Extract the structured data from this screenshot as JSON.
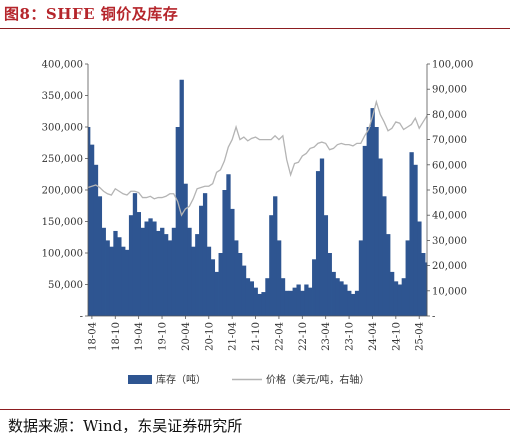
{
  "title": "图8：SHFE 铜价及库存",
  "source": "数据来源：Wind，东吴证券研究所",
  "chart_data": {
    "type": "area",
    "x_tick_labels": [
      "18-04",
      "18-10",
      "19-04",
      "19-10",
      "20-04",
      "20-10",
      "21-04",
      "21-10",
      "22-04",
      "22-10",
      "23-04",
      "23-10",
      "24-04",
      "24-10",
      "25-04"
    ],
    "left_axis": {
      "ylim": [
        0,
        400000
      ],
      "ticks": [
        "-",
        "50,000",
        "100,000",
        "150,000",
        "200,000",
        "250,000",
        "300,000",
        "350,000",
        "400,000"
      ]
    },
    "right_axis": {
      "ylim": [
        0,
        100000
      ],
      "ticks": [
        "-",
        "10,000",
        "20,000",
        "30,000",
        "40,000",
        "50,000",
        "60,000",
        "70,000",
        "80,000",
        "90,000",
        "100,000"
      ]
    },
    "series": [
      {
        "name": "库存（吨）",
        "axis": "left",
        "color": "#2e5591",
        "x": [
          "2018-03",
          "2018-04",
          "2018-05",
          "2018-06",
          "2018-07",
          "2018-08",
          "2018-09",
          "2018-10",
          "2018-11",
          "2018-12",
          "2019-01",
          "2019-02",
          "2019-03",
          "2019-04",
          "2019-05",
          "2019-06",
          "2019-07",
          "2019-08",
          "2019-09",
          "2019-10",
          "2019-11",
          "2019-12",
          "2020-01",
          "2020-02",
          "2020-03",
          "2020-04",
          "2020-05",
          "2020-06",
          "2020-07",
          "2020-08",
          "2020-09",
          "2020-10",
          "2020-11",
          "2020-12",
          "2021-01",
          "2021-02",
          "2021-03",
          "2021-04",
          "2021-05",
          "2021-06",
          "2021-07",
          "2021-08",
          "2021-09",
          "2021-10",
          "2021-11",
          "2021-12",
          "2022-01",
          "2022-02",
          "2022-03",
          "2022-04",
          "2022-05",
          "2022-06",
          "2022-07",
          "2022-08",
          "2022-09",
          "2022-10",
          "2022-11",
          "2022-12",
          "2023-01",
          "2023-02",
          "2023-03",
          "2023-04",
          "2023-05",
          "2023-06",
          "2023-07",
          "2023-08",
          "2023-09",
          "2023-10",
          "2023-11",
          "2023-12",
          "2024-01",
          "2024-02",
          "2024-03",
          "2024-04",
          "2024-05",
          "2024-06",
          "2024-07",
          "2024-08",
          "2024-09",
          "2024-10",
          "2024-11",
          "2024-12",
          "2025-01",
          "2025-02",
          "2025-03",
          "2025-04",
          "2025-05",
          "2025-06"
        ],
        "values": [
          300000,
          272000,
          240000,
          190000,
          140000,
          120000,
          110000,
          135000,
          125000,
          110000,
          105000,
          160000,
          195000,
          165000,
          140000,
          150000,
          155000,
          150000,
          135000,
          140000,
          130000,
          120000,
          140000,
          300000,
          375000,
          210000,
          140000,
          110000,
          130000,
          175000,
          195000,
          110000,
          90000,
          70000,
          100000,
          200000,
          225000,
          170000,
          120000,
          100000,
          80000,
          60000,
          55000,
          45000,
          35000,
          38000,
          60000,
          160000,
          190000,
          120000,
          60000,
          40000,
          40000,
          45000,
          50000,
          40000,
          50000,
          45000,
          90000,
          230000,
          250000,
          160000,
          100000,
          70000,
          60000,
          55000,
          50000,
          40000,
          35000,
          40000,
          120000,
          270000,
          300000,
          330000,
          300000,
          250000,
          190000,
          130000,
          70000,
          55000,
          50000,
          60000,
          120000,
          260000,
          240000,
          150000,
          100000,
          85000
        ]
      },
      {
        "name": "价格（美元/吨，右轴）",
        "axis": "right",
        "color": "#b4b4b4",
        "x": [
          "2018-03",
          "2018-04",
          "2018-05",
          "2018-06",
          "2018-07",
          "2018-08",
          "2018-09",
          "2018-10",
          "2018-11",
          "2018-12",
          "2019-01",
          "2019-02",
          "2019-03",
          "2019-04",
          "2019-05",
          "2019-06",
          "2019-07",
          "2019-08",
          "2019-09",
          "2019-10",
          "2019-11",
          "2019-12",
          "2020-01",
          "2020-02",
          "2020-03",
          "2020-04",
          "2020-05",
          "2020-06",
          "2020-07",
          "2020-08",
          "2020-09",
          "2020-10",
          "2020-11",
          "2020-12",
          "2021-01",
          "2021-02",
          "2021-03",
          "2021-04",
          "2021-05",
          "2021-06",
          "2021-07",
          "2021-08",
          "2021-09",
          "2021-10",
          "2021-11",
          "2021-12",
          "2022-01",
          "2022-02",
          "2022-03",
          "2022-04",
          "2022-05",
          "2022-06",
          "2022-07",
          "2022-08",
          "2022-09",
          "2022-10",
          "2022-11",
          "2022-12",
          "2023-01",
          "2023-02",
          "2023-03",
          "2023-04",
          "2023-05",
          "2023-06",
          "2023-07",
          "2023-08",
          "2023-09",
          "2023-10",
          "2023-11",
          "2023-12",
          "2024-01",
          "2024-02",
          "2024-03",
          "2024-04",
          "2024-05",
          "2024-06",
          "2024-07",
          "2024-08",
          "2024-09",
          "2024-10",
          "2024-11",
          "2024-12",
          "2025-01",
          "2025-02",
          "2025-03",
          "2025-04",
          "2025-05",
          "2025-06"
        ],
        "values": [
          51000,
          51500,
          52000,
          51000,
          49500,
          48500,
          48000,
          50500,
          49500,
          48500,
          48000,
          49500,
          49500,
          49000,
          47000,
          47000,
          47500,
          46500,
          47000,
          47000,
          47500,
          48500,
          48500,
          45500,
          40000,
          42500,
          43500,
          46500,
          50500,
          51000,
          51500,
          51500,
          52500,
          57000,
          58000,
          61500,
          67000,
          70000,
          75000,
          70000,
          71000,
          69500,
          70500,
          71000,
          70000,
          70000,
          70000,
          70000,
          71500,
          70000,
          71500,
          62000,
          56000,
          60500,
          61000,
          63500,
          64500,
          66500,
          67000,
          68500,
          69000,
          68500,
          66000,
          66500,
          68000,
          68500,
          68000,
          68000,
          67500,
          68500,
          68500,
          71500,
          74000,
          79000,
          85000,
          80000,
          77000,
          73500,
          74500,
          77000,
          76500,
          74000,
          75000,
          76000,
          78500,
          74500,
          77000,
          79500
        ]
      }
    ],
    "grid": false,
    "legend_position": "bottom"
  }
}
